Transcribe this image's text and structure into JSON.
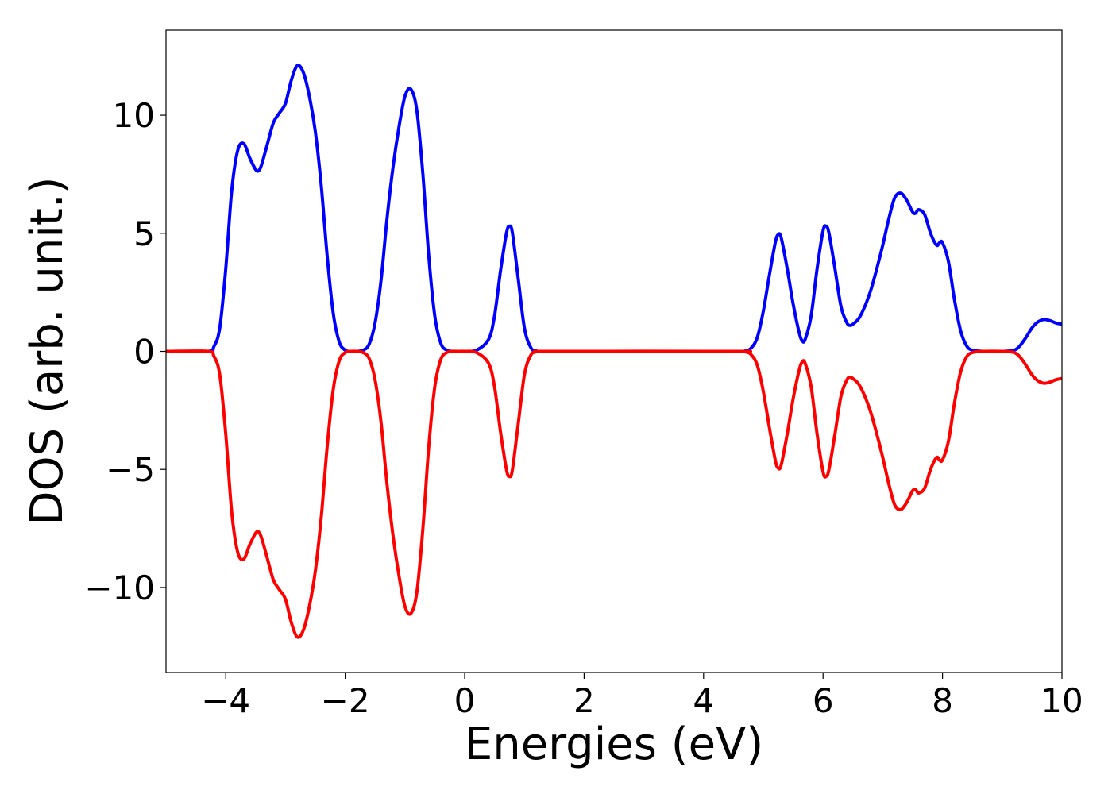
{
  "chart_data": {
    "type": "line",
    "title": "",
    "xlabel": "Energies (eV)",
    "ylabel": "DOS (arb. unit.)",
    "xlim": [
      -5,
      10
    ],
    "ylim": [
      -13.6,
      13.6
    ],
    "xticks": [
      -4,
      -2,
      0,
      2,
      4,
      6,
      8,
      10
    ],
    "yticks": [
      -10,
      -5,
      0,
      5,
      10
    ],
    "xtick_labels": [
      "−4",
      "−2",
      "0",
      "2",
      "4",
      "6",
      "8",
      "10"
    ],
    "ytick_labels": [
      "−10",
      "−5",
      "0",
      "5",
      "10"
    ],
    "grid": false,
    "legend": "none",
    "series": [
      {
        "color": "#0000ff",
        "x": [
          -5,
          -4.3,
          -4.2,
          -4.1,
          -4.0,
          -3.9,
          -3.8,
          -3.7,
          -3.6,
          -3.5,
          -3.45,
          -3.4,
          -3.3,
          -3.2,
          -3.1,
          -3.0,
          -2.9,
          -2.8,
          -2.7,
          -2.6,
          -2.5,
          -2.4,
          -2.3,
          -2.2,
          -2.1,
          -2.0,
          -1.9,
          -1.8,
          -1.7,
          -1.6,
          -1.5,
          -1.4,
          -1.3,
          -1.2,
          -1.1,
          -1.0,
          -0.9,
          -0.8,
          -0.7,
          -0.6,
          -0.5,
          -0.4,
          -0.3,
          -0.2,
          -0.1,
          0.0,
          0.2,
          0.4,
          0.5,
          0.6,
          0.7,
          0.75,
          0.8,
          0.9,
          1.0,
          1.1,
          1.2,
          1.5,
          4.5,
          4.7,
          4.8,
          4.9,
          5.0,
          5.1,
          5.2,
          5.25,
          5.3,
          5.4,
          5.5,
          5.6,
          5.65,
          5.7,
          5.8,
          5.9,
          6.0,
          6.05,
          6.1,
          6.2,
          6.3,
          6.4,
          6.45,
          6.5,
          6.6,
          6.7,
          6.8,
          6.9,
          7.0,
          7.1,
          7.2,
          7.3,
          7.4,
          7.5,
          7.55,
          7.6,
          7.7,
          7.8,
          7.9,
          7.95,
          8.0,
          8.1,
          8.2,
          8.3,
          8.4,
          8.5,
          8.7,
          9.0,
          9.2,
          9.3,
          9.4,
          9.5,
          9.6,
          9.7,
          9.8,
          9.9,
          10.0
        ],
        "y": [
          0,
          0,
          0.2,
          1.0,
          3.5,
          6.8,
          8.5,
          8.8,
          8.2,
          7.7,
          7.65,
          7.9,
          8.8,
          9.7,
          10.1,
          10.5,
          11.5,
          12.1,
          11.8,
          10.8,
          9.3,
          7.0,
          4.0,
          1.6,
          0.4,
          0.05,
          0,
          0,
          0.05,
          0.3,
          1.2,
          3.0,
          5.6,
          7.8,
          9.5,
          10.8,
          11.1,
          10.2,
          7.5,
          4.0,
          1.5,
          0.35,
          0.05,
          0,
          0,
          0,
          0.05,
          0.5,
          1.5,
          3.4,
          5.0,
          5.3,
          5.0,
          3.0,
          1.0,
          0.2,
          0.02,
          0,
          0,
          0.02,
          0.15,
          0.6,
          1.7,
          3.2,
          4.6,
          4.95,
          4.8,
          3.5,
          2.0,
          0.8,
          0.45,
          0.5,
          1.5,
          3.5,
          5.1,
          5.3,
          5.0,
          3.5,
          1.9,
          1.2,
          1.1,
          1.15,
          1.4,
          1.9,
          2.6,
          3.5,
          4.5,
          5.6,
          6.5,
          6.7,
          6.4,
          5.9,
          5.85,
          6.0,
          5.8,
          5.0,
          4.5,
          4.6,
          4.6,
          3.8,
          2.2,
          0.9,
          0.25,
          0.05,
          0,
          0,
          0.05,
          0.25,
          0.6,
          1.0,
          1.25,
          1.35,
          1.3,
          1.2,
          1.15
        ]
      },
      {
        "color": "#ff0000",
        "x": [
          -5,
          -4.3,
          -4.2,
          -4.1,
          -4.0,
          -3.9,
          -3.8,
          -3.7,
          -3.6,
          -3.5,
          -3.45,
          -3.4,
          -3.3,
          -3.2,
          -3.1,
          -3.0,
          -2.9,
          -2.8,
          -2.7,
          -2.6,
          -2.5,
          -2.4,
          -2.3,
          -2.2,
          -2.1,
          -2.0,
          -1.9,
          -1.8,
          -1.7,
          -1.6,
          -1.5,
          -1.4,
          -1.3,
          -1.2,
          -1.1,
          -1.0,
          -0.9,
          -0.8,
          -0.7,
          -0.6,
          -0.5,
          -0.4,
          -0.3,
          -0.2,
          -0.1,
          0.0,
          0.2,
          0.4,
          0.5,
          0.6,
          0.7,
          0.75,
          0.8,
          0.9,
          1.0,
          1.1,
          1.2,
          1.5,
          4.5,
          4.7,
          4.8,
          4.9,
          5.0,
          5.1,
          5.2,
          5.25,
          5.3,
          5.4,
          5.5,
          5.6,
          5.65,
          5.7,
          5.8,
          5.9,
          6.0,
          6.05,
          6.1,
          6.2,
          6.3,
          6.4,
          6.45,
          6.5,
          6.6,
          6.7,
          6.8,
          6.9,
          7.0,
          7.1,
          7.2,
          7.3,
          7.4,
          7.5,
          7.55,
          7.6,
          7.7,
          7.8,
          7.9,
          7.95,
          8.0,
          8.1,
          8.2,
          8.3,
          8.4,
          8.5,
          8.7,
          9.0,
          9.2,
          9.3,
          9.4,
          9.5,
          9.6,
          9.7,
          9.8,
          9.9,
          10.0
        ],
        "y": [
          0,
          0,
          -0.2,
          -1.0,
          -3.5,
          -6.8,
          -8.5,
          -8.8,
          -8.2,
          -7.7,
          -7.65,
          -7.9,
          -8.8,
          -9.7,
          -10.1,
          -10.5,
          -11.5,
          -12.1,
          -11.8,
          -10.8,
          -9.3,
          -7.0,
          -4.0,
          -1.6,
          -0.4,
          -0.05,
          0,
          0,
          -0.05,
          -0.3,
          -1.2,
          -3.0,
          -5.6,
          -7.8,
          -9.5,
          -10.8,
          -11.1,
          -10.2,
          -7.5,
          -4.0,
          -1.5,
          -0.35,
          -0.05,
          0,
          0,
          0,
          -0.05,
          -0.5,
          -1.5,
          -3.4,
          -5.0,
          -5.3,
          -5.0,
          -3.0,
          -1.0,
          -0.2,
          -0.02,
          0,
          0,
          -0.02,
          -0.15,
          -0.6,
          -1.7,
          -3.2,
          -4.6,
          -4.95,
          -4.8,
          -3.5,
          -2.0,
          -0.8,
          -0.45,
          -0.5,
          -1.5,
          -3.5,
          -5.1,
          -5.3,
          -5.0,
          -3.5,
          -1.9,
          -1.2,
          -1.1,
          -1.15,
          -1.4,
          -1.9,
          -2.6,
          -3.5,
          -4.5,
          -5.6,
          -6.5,
          -6.7,
          -6.4,
          -5.9,
          -5.85,
          -6.0,
          -5.8,
          -5.0,
          -4.5,
          -4.6,
          -4.6,
          -3.8,
          -2.2,
          -0.9,
          -0.25,
          -0.05,
          0,
          0,
          -0.05,
          -0.25,
          -0.6,
          -1.0,
          -1.25,
          -1.35,
          -1.3,
          -1.2,
          -1.15
        ]
      }
    ]
  }
}
